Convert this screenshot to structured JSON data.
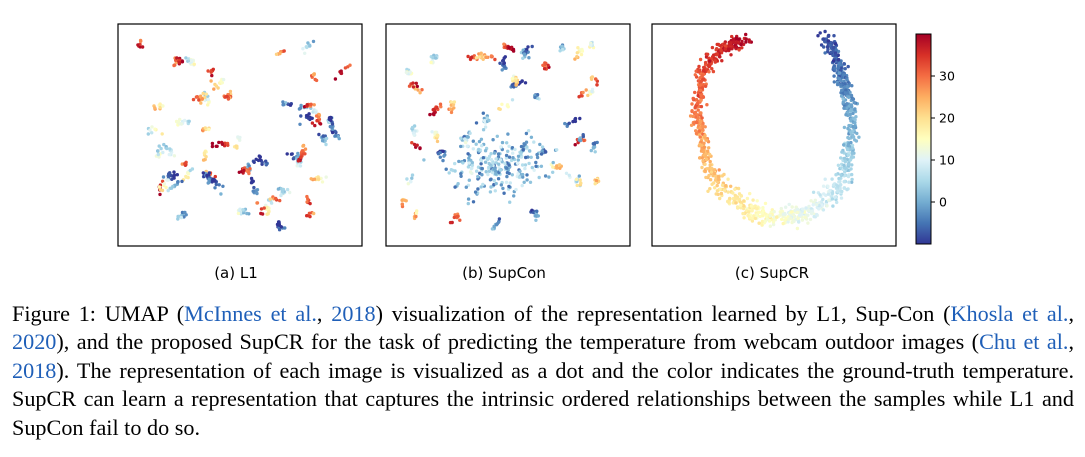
{
  "panels": [
    {
      "label": "(a) L1",
      "method": "L1",
      "pattern": "scattered-clusters"
    },
    {
      "label": "(b) SupCon",
      "method": "SupCon",
      "pattern": "scattered-clusters-blue-center"
    },
    {
      "label": "(c) SupCR",
      "method": "SupCR",
      "pattern": "ordered-U-shape"
    }
  ],
  "colorbar": {
    "colormap": "RdYlBu_r",
    "range": [
      -10,
      40
    ],
    "ticks": [
      "0",
      "10",
      "20",
      "30"
    ],
    "tick_values": [
      0,
      10,
      20,
      30
    ]
  },
  "caption": {
    "lead": "Figure 1: UMAP (",
    "cite1_author": "McInnes et al.",
    "sep1": ", ",
    "cite1_year": "2018",
    "part2": ") visualization of the representation learned by L1, Sup-Con (",
    "cite2_author": "Khosla et al.",
    "sep2": ", ",
    "cite2_year": "2020",
    "part3": "), and the proposed SupCR for the task of predicting the temperature from webcam outdoor images (",
    "cite3_author": "Chu et al.",
    "sep3": ", ",
    "cite3_year": "2018",
    "part4": "). The representation of each image is visualized as a dot and the color indicates the ground-truth temperature. SupCR can learn a representation that captures the intrinsic ordered relationships between the samples while L1 and SupCon fail to do so."
  },
  "colors": {
    "citation": "#1f5fb8",
    "frame": "#000000"
  }
}
